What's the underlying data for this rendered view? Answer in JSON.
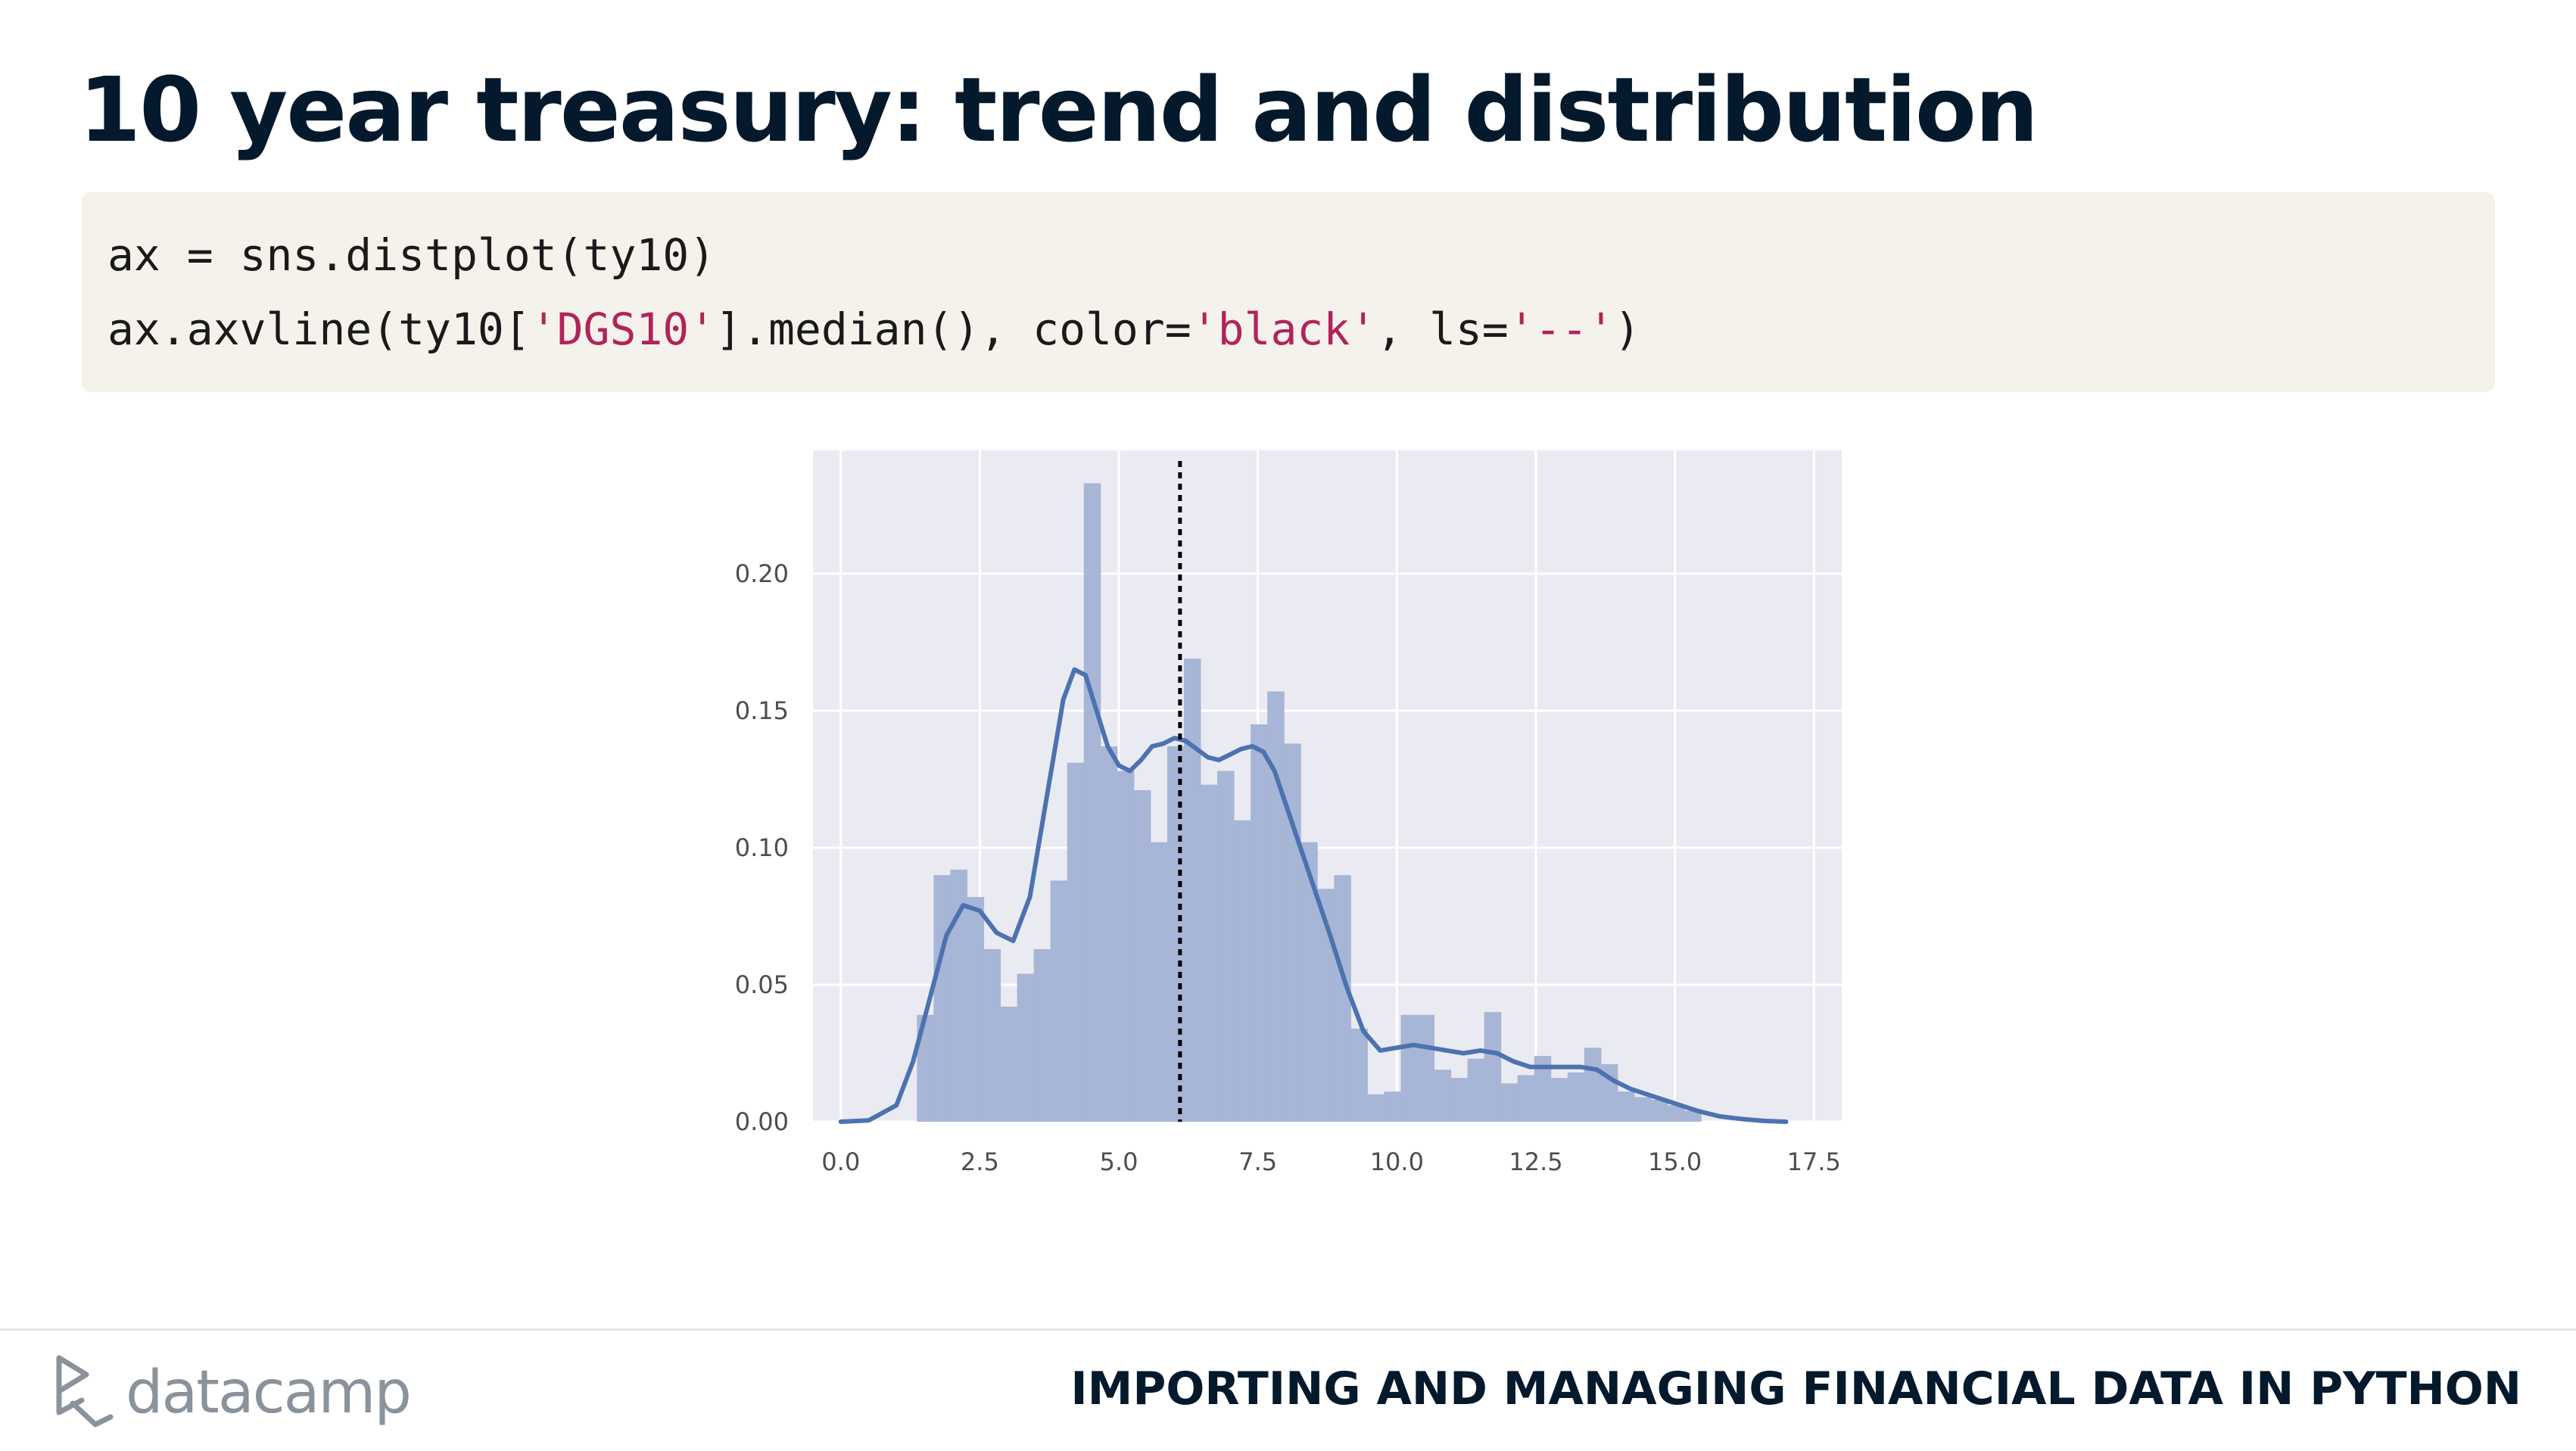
{
  "slide": {
    "title": "10 year treasury: trend and distribution",
    "course_title": "IMPORTING AND MANAGING FINANCIAL DATA IN PYTHON",
    "logo_text": "datacamp"
  },
  "code": {
    "line1": "ax = sns.distplot(ty10)",
    "line2_a": "ax.axvline(ty10[",
    "line2_s1": "'DGS10'",
    "line2_b": "].median(), color=",
    "line2_s2": "'black'",
    "line2_c": ", ls=",
    "line2_s3": "'--'",
    "line2_d": ")"
  },
  "colors": {
    "bar": "#a7b5d6",
    "kde": "#4c72b0",
    "plot_bg": "#eaeaf2",
    "grid": "#ffffff",
    "median_line": "#000000"
  },
  "chart_data": {
    "type": "bar",
    "title": "",
    "xlabel": "",
    "ylabel": "",
    "xlim": [
      -0.5,
      18.0
    ],
    "ylim": [
      0,
      0.245
    ],
    "grid": true,
    "xticks": [
      0.0,
      2.5,
      5.0,
      7.5,
      10.0,
      12.5,
      15.0,
      17.5
    ],
    "xtick_labels": [
      "0.0",
      "2.5",
      "5.0",
      "7.5",
      "10.0",
      "12.5",
      "15.0",
      "17.5"
    ],
    "yticks": [
      0.0,
      0.05,
      0.1,
      0.15,
      0.2
    ],
    "ytick_labels": [
      "0.00",
      "0.05",
      "0.10",
      "0.15",
      "0.20"
    ],
    "histogram": {
      "bin_start": 1.37,
      "bin_width": 0.3,
      "values": [
        0.039,
        0.09,
        0.092,
        0.082,
        0.063,
        0.042,
        0.054,
        0.063,
        0.088,
        0.131,
        0.233,
        0.137,
        0.128,
        0.121,
        0.102,
        0.137,
        0.169,
        0.123,
        0.128,
        0.11,
        0.145,
        0.157,
        0.138,
        0.102,
        0.085,
        0.09,
        0.034,
        0.01,
        0.011,
        0.039,
        0.039,
        0.019,
        0.016,
        0.023,
        0.04,
        0.014,
        0.017,
        0.024,
        0.016,
        0.018,
        0.027,
        0.021,
        0.011,
        0.009,
        0.008,
        0.006,
        0.004
      ]
    },
    "kde": {
      "x": [
        0.0,
        0.5,
        1.0,
        1.3,
        1.6,
        1.9,
        2.2,
        2.5,
        2.8,
        3.1,
        3.4,
        3.7,
        4.0,
        4.2,
        4.4,
        4.6,
        4.8,
        5.0,
        5.2,
        5.4,
        5.6,
        5.8,
        6.0,
        6.2,
        6.4,
        6.6,
        6.8,
        7.0,
        7.2,
        7.4,
        7.6,
        7.8,
        8.0,
        8.2,
        8.5,
        8.8,
        9.1,
        9.4,
        9.7,
        10.0,
        10.3,
        10.6,
        10.9,
        11.2,
        11.5,
        11.8,
        12.1,
        12.4,
        12.7,
        13.0,
        13.3,
        13.6,
        13.9,
        14.2,
        14.5,
        14.8,
        15.1,
        15.4,
        15.8,
        16.2,
        16.6,
        17.0
      ],
      "y": [
        0.0,
        0.0005,
        0.006,
        0.022,
        0.045,
        0.068,
        0.079,
        0.077,
        0.069,
        0.066,
        0.082,
        0.118,
        0.154,
        0.165,
        0.163,
        0.15,
        0.137,
        0.13,
        0.128,
        0.132,
        0.137,
        0.138,
        0.14,
        0.139,
        0.136,
        0.133,
        0.132,
        0.134,
        0.136,
        0.137,
        0.135,
        0.128,
        0.116,
        0.104,
        0.086,
        0.068,
        0.049,
        0.033,
        0.026,
        0.027,
        0.028,
        0.027,
        0.026,
        0.025,
        0.026,
        0.025,
        0.022,
        0.02,
        0.02,
        0.02,
        0.02,
        0.019,
        0.015,
        0.012,
        0.01,
        0.008,
        0.006,
        0.004,
        0.002,
        0.001,
        0.0003,
        0.0
      ]
    },
    "median_line": {
      "x": 6.1,
      "style": "dashed",
      "color": "black"
    }
  }
}
